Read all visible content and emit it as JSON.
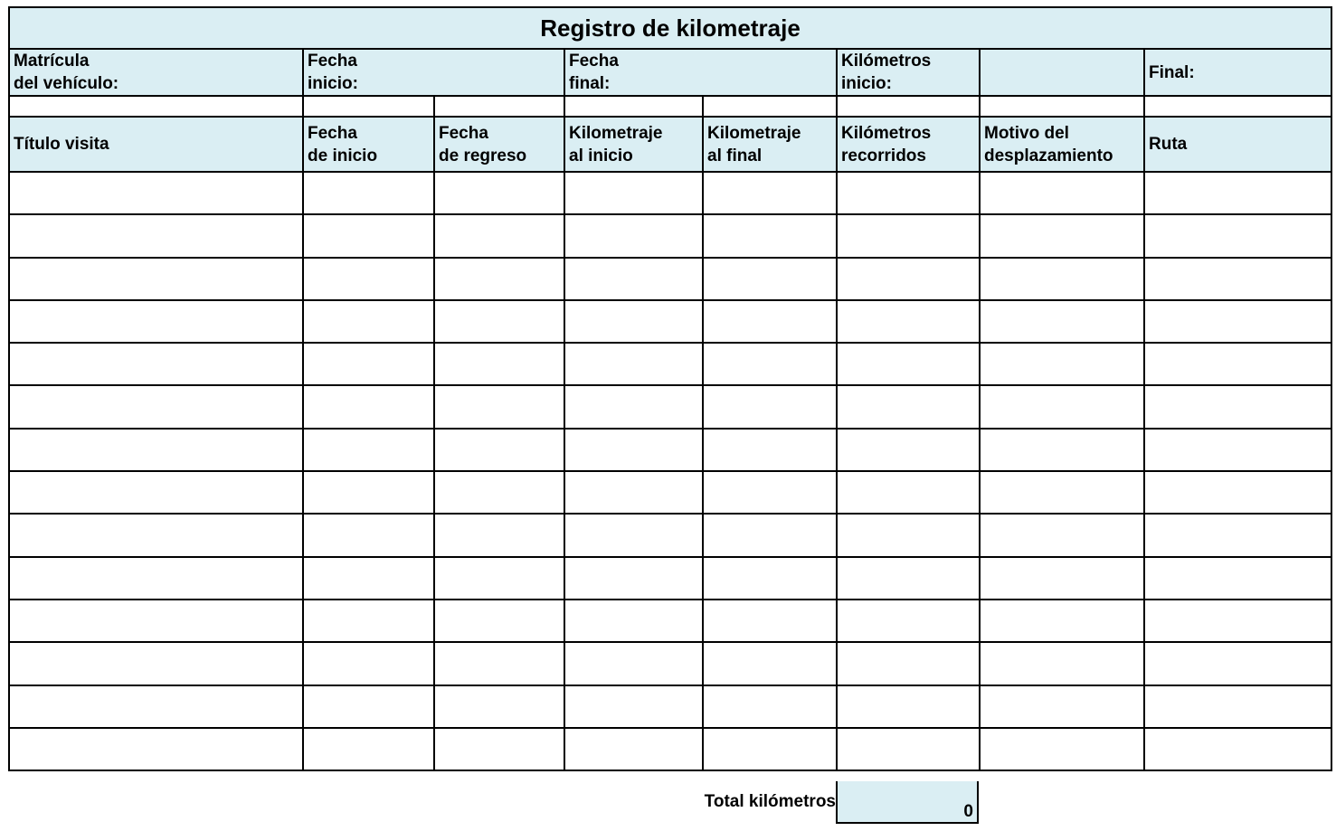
{
  "title": "Registro de kilometraje",
  "info_row": {
    "plate_label": "Matrícula\ndel vehículo:",
    "start_date_label": "Fecha\ninicio:",
    "end_date_label": "Fecha\nfinal:",
    "km_start_label": "Kilómetros\ninicio:",
    "final_label": "Final:"
  },
  "columns": [
    "Título visita",
    "Fecha\nde inicio",
    "Fecha\nde regreso",
    "Kilometraje\nal inicio",
    "Kilometraje\nal final",
    "Kilómetros\nrecorridos",
    "Motivo del\ndesplazamiento",
    "Ruta"
  ],
  "row_count": 14,
  "total": {
    "label": "Total kilómetros",
    "value": "0"
  },
  "colors": {
    "header_fill": "#DAEEF3",
    "border": "#000000"
  }
}
